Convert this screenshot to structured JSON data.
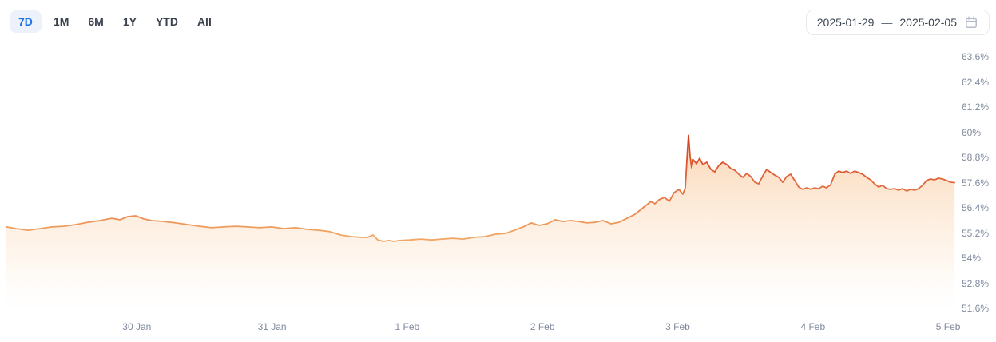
{
  "toolbar": {
    "ranges": [
      {
        "label": "7D",
        "active": true
      },
      {
        "label": "1M",
        "active": false
      },
      {
        "label": "6M",
        "active": false
      },
      {
        "label": "1Y",
        "active": false
      },
      {
        "label": "YTD",
        "active": false
      },
      {
        "label": "All",
        "active": false
      }
    ],
    "date_range": {
      "start": "2025-01-29",
      "separator": "—",
      "end": "2025-02-05"
    }
  },
  "colors": {
    "accent_blue": "#1f6fe5",
    "active_pill_bg": "#edf2fa",
    "axis_text": "#7f8a9d",
    "line_low": "#f4ad6a",
    "line_mid": "#e26338",
    "line_high": "#ce3a1d",
    "fill_top": "rgba(243,150,64,0.42)"
  },
  "chart_data": {
    "type": "area",
    "title": "",
    "xlabel": "",
    "ylabel": "",
    "grid": false,
    "legend": false,
    "x_axis": {
      "unit": "days",
      "start_label": "2025-01-29",
      "end_label": "2025-02-05",
      "range_days": [
        0,
        7.05
      ]
    },
    "y_axis": {
      "min": 51.6,
      "max": 63.6,
      "step": 1.2,
      "unit": "%"
    },
    "y_ticks": [
      {
        "value": 63.6,
        "label": "63.6%"
      },
      {
        "value": 62.4,
        "label": "62.4%"
      },
      {
        "value": 61.2,
        "label": "61.2%"
      },
      {
        "value": 60.0,
        "label": "60%"
      },
      {
        "value": 58.8,
        "label": "58.8%"
      },
      {
        "value": 57.6,
        "label": "57.6%"
      },
      {
        "value": 56.4,
        "label": "56.4%"
      },
      {
        "value": 55.2,
        "label": "55.2%"
      },
      {
        "value": 54.0,
        "label": "54%"
      },
      {
        "value": 52.8,
        "label": "52.8%"
      },
      {
        "value": 51.6,
        "label": "51.6%"
      }
    ],
    "x_ticks": [
      {
        "t": 1,
        "label": "30 Jan"
      },
      {
        "t": 2,
        "label": "31 Jan"
      },
      {
        "t": 3,
        "label": "1 Feb"
      },
      {
        "t": 4,
        "label": "2 Feb"
      },
      {
        "t": 5,
        "label": "3 Feb"
      },
      {
        "t": 6,
        "label": "4 Feb"
      },
      {
        "t": 7,
        "label": "5 Feb"
      }
    ],
    "series": [
      {
        "name": "",
        "points": [
          [
            0.035,
            55.49
          ],
          [
            0.106,
            55.41
          ],
          [
            0.195,
            55.33
          ],
          [
            0.284,
            55.41
          ],
          [
            0.372,
            55.49
          ],
          [
            0.461,
            55.52
          ],
          [
            0.549,
            55.6
          ],
          [
            0.638,
            55.71
          ],
          [
            0.727,
            55.79
          ],
          [
            0.815,
            55.9
          ],
          [
            0.874,
            55.83
          ],
          [
            0.933,
            55.98
          ],
          [
            0.992,
            56.02
          ],
          [
            1.051,
            55.87
          ],
          [
            1.11,
            55.79
          ],
          [
            1.199,
            55.75
          ],
          [
            1.288,
            55.68
          ],
          [
            1.376,
            55.6
          ],
          [
            1.465,
            55.52
          ],
          [
            1.553,
            55.45
          ],
          [
            1.642,
            55.49
          ],
          [
            1.731,
            55.52
          ],
          [
            1.819,
            55.49
          ],
          [
            1.908,
            55.45
          ],
          [
            1.996,
            55.49
          ],
          [
            2.085,
            55.41
          ],
          [
            2.174,
            55.45
          ],
          [
            2.262,
            55.37
          ],
          [
            2.351,
            55.33
          ],
          [
            2.428,
            55.26
          ],
          [
            2.51,
            55.1
          ],
          [
            2.587,
            55.03
          ],
          [
            2.664,
            54.99
          ],
          [
            2.705,
            54.99
          ],
          [
            2.747,
            55.1
          ],
          [
            2.782,
            54.87
          ],
          [
            2.824,
            54.8
          ],
          [
            2.865,
            54.84
          ],
          [
            2.9,
            54.8
          ],
          [
            2.942,
            54.84
          ],
          [
            3.018,
            54.87
          ],
          [
            3.101,
            54.91
          ],
          [
            3.178,
            54.87
          ],
          [
            3.255,
            54.91
          ],
          [
            3.337,
            54.95
          ],
          [
            3.414,
            54.91
          ],
          [
            3.491,
            54.99
          ],
          [
            3.574,
            55.03
          ],
          [
            3.65,
            55.14
          ],
          [
            3.727,
            55.18
          ],
          [
            3.81,
            55.37
          ],
          [
            3.869,
            55.52
          ],
          [
            3.916,
            55.68
          ],
          [
            3.975,
            55.56
          ],
          [
            4.034,
            55.64
          ],
          [
            4.093,
            55.83
          ],
          [
            4.152,
            55.75
          ],
          [
            4.211,
            55.79
          ],
          [
            4.27,
            55.75
          ],
          [
            4.329,
            55.68
          ],
          [
            4.388,
            55.71
          ],
          [
            4.448,
            55.79
          ],
          [
            4.507,
            55.64
          ],
          [
            4.566,
            55.71
          ],
          [
            4.625,
            55.9
          ],
          [
            4.684,
            56.09
          ],
          [
            4.743,
            56.4
          ],
          [
            4.802,
            56.7
          ],
          [
            4.831,
            56.59
          ],
          [
            4.861,
            56.78
          ],
          [
            4.902,
            56.9
          ],
          [
            4.938,
            56.71
          ],
          [
            4.973,
            57.12
          ],
          [
            5.009,
            57.28
          ],
          [
            5.038,
            57.05
          ],
          [
            5.056,
            57.35
          ],
          [
            5.068,
            58.69
          ],
          [
            5.08,
            59.85
          ],
          [
            5.091,
            58.88
          ],
          [
            5.103,
            58.31
          ],
          [
            5.115,
            58.69
          ],
          [
            5.139,
            58.5
          ],
          [
            5.162,
            58.76
          ],
          [
            5.186,
            58.46
          ],
          [
            5.215,
            58.57
          ],
          [
            5.245,
            58.23
          ],
          [
            5.274,
            58.11
          ],
          [
            5.304,
            58.42
          ],
          [
            5.333,
            58.57
          ],
          [
            5.363,
            58.46
          ],
          [
            5.393,
            58.27
          ],
          [
            5.422,
            58.19
          ],
          [
            5.452,
            58.0
          ],
          [
            5.481,
            57.85
          ],
          [
            5.511,
            58.04
          ],
          [
            5.54,
            57.89
          ],
          [
            5.57,
            57.62
          ],
          [
            5.599,
            57.54
          ],
          [
            5.629,
            57.92
          ],
          [
            5.658,
            58.23
          ],
          [
            5.688,
            58.08
          ],
          [
            5.717,
            57.96
          ],
          [
            5.747,
            57.85
          ],
          [
            5.777,
            57.62
          ],
          [
            5.806,
            57.89
          ],
          [
            5.836,
            58.0
          ],
          [
            5.865,
            57.7
          ],
          [
            5.895,
            57.39
          ],
          [
            5.924,
            57.28
          ],
          [
            5.954,
            57.35
          ],
          [
            5.983,
            57.28
          ],
          [
            6.013,
            57.35
          ],
          [
            6.042,
            57.31
          ],
          [
            6.072,
            57.43
          ],
          [
            6.101,
            57.35
          ],
          [
            6.131,
            57.5
          ],
          [
            6.161,
            58.0
          ],
          [
            6.19,
            58.15
          ],
          [
            6.22,
            58.08
          ],
          [
            6.249,
            58.15
          ],
          [
            6.279,
            58.04
          ],
          [
            6.308,
            58.15
          ],
          [
            6.338,
            58.08
          ],
          [
            6.367,
            58.0
          ],
          [
            6.397,
            57.85
          ],
          [
            6.427,
            57.73
          ],
          [
            6.456,
            57.54
          ],
          [
            6.486,
            57.39
          ],
          [
            6.515,
            57.47
          ],
          [
            6.545,
            57.31
          ],
          [
            6.574,
            57.28
          ],
          [
            6.604,
            57.31
          ],
          [
            6.633,
            57.24
          ],
          [
            6.663,
            57.31
          ],
          [
            6.693,
            57.2
          ],
          [
            6.722,
            57.28
          ],
          [
            6.752,
            57.24
          ],
          [
            6.781,
            57.31
          ],
          [
            6.811,
            57.47
          ],
          [
            6.84,
            57.7
          ],
          [
            6.87,
            57.77
          ],
          [
            6.899,
            57.73
          ],
          [
            6.929,
            57.81
          ],
          [
            6.958,
            57.77
          ],
          [
            6.988,
            57.7
          ],
          [
            7.017,
            57.62
          ],
          [
            7.047,
            57.6
          ]
        ]
      }
    ]
  }
}
